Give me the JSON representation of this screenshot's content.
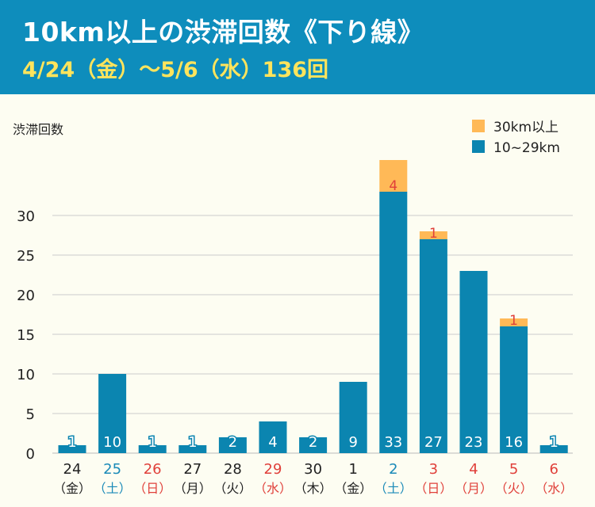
{
  "header": {
    "title": "10km以上の渋滞回数《下り線》",
    "subtitle": "4/24（金）～5/6（水）136回"
  },
  "colors": {
    "header_bg": "#0e8dbc",
    "bar_main": "#0b85b0",
    "bar_top": "#ffb957",
    "weekday": "#222222",
    "saturday": "#1a8ab8",
    "holiday": "#e0403a"
  },
  "chart_data": {
    "type": "bar",
    "stacked": true,
    "title": "10km以上の渋滞回数《下り線》",
    "ylabel": "渋滞回数",
    "ylim": [
      0,
      37
    ],
    "yticks": [
      0,
      5,
      10,
      15,
      20,
      25,
      30
    ],
    "grid": true,
    "legend_position": "top-right",
    "categories": [
      {
        "day": "24",
        "weekday": "（金）",
        "kind": "weekday"
      },
      {
        "day": "25",
        "weekday": "（土）",
        "kind": "saturday"
      },
      {
        "day": "26",
        "weekday": "（日）",
        "kind": "holiday"
      },
      {
        "day": "27",
        "weekday": "（月）",
        "kind": "weekday"
      },
      {
        "day": "28",
        "weekday": "（火）",
        "kind": "weekday"
      },
      {
        "day": "29",
        "weekday": "（水）",
        "kind": "holiday"
      },
      {
        "day": "30",
        "weekday": "（木）",
        "kind": "weekday"
      },
      {
        "day": "1",
        "weekday": "（金）",
        "kind": "weekday"
      },
      {
        "day": "2",
        "weekday": "（土）",
        "kind": "saturday"
      },
      {
        "day": "3",
        "weekday": "（日）",
        "kind": "holiday"
      },
      {
        "day": "4",
        "weekday": "（月）",
        "kind": "holiday"
      },
      {
        "day": "5",
        "weekday": "（火）",
        "kind": "holiday"
      },
      {
        "day": "6",
        "weekday": "（水）",
        "kind": "holiday"
      }
    ],
    "series": [
      {
        "name": "10~29km",
        "color": "#0b85b0",
        "values": [
          1,
          10,
          1,
          1,
          2,
          4,
          2,
          9,
          33,
          27,
          23,
          16,
          1
        ]
      },
      {
        "name": "30km以上",
        "color": "#ffb957",
        "values": [
          0,
          0,
          0,
          0,
          0,
          0,
          0,
          0,
          4,
          1,
          0,
          1,
          0
        ]
      }
    ]
  }
}
